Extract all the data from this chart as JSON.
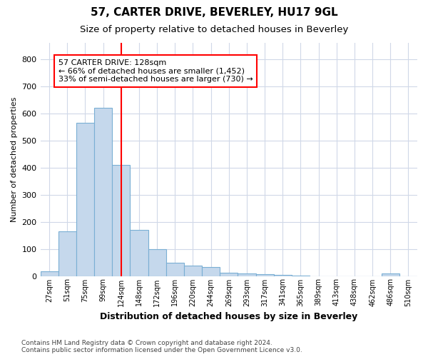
{
  "title1": "57, CARTER DRIVE, BEVERLEY, HU17 9GL",
  "title2": "Size of property relative to detached houses in Beverley",
  "xlabel": "Distribution of detached houses by size in Beverley",
  "ylabel": "Number of detached properties",
  "footnote": "Contains HM Land Registry data © Crown copyright and database right 2024.\nContains public sector information licensed under the Open Government Licence v3.0.",
  "bar_color": "#c5d8ec",
  "bar_edge_color": "#7aafd4",
  "categories": [
    "27sqm",
    "51sqm",
    "75sqm",
    "99sqm",
    "124sqm",
    "148sqm",
    "172sqm",
    "196sqm",
    "220sqm",
    "244sqm",
    "269sqm",
    "293sqm",
    "317sqm",
    "341sqm",
    "365sqm",
    "389sqm",
    "413sqm",
    "438sqm",
    "462sqm",
    "486sqm",
    "510sqm"
  ],
  "values": [
    17,
    165,
    565,
    620,
    410,
    170,
    100,
    50,
    38,
    32,
    12,
    10,
    7,
    5,
    2,
    0,
    0,
    0,
    0,
    8,
    0
  ],
  "ylim": [
    0,
    860
  ],
  "yticks": [
    0,
    100,
    200,
    300,
    400,
    500,
    600,
    700,
    800
  ],
  "annotation_text_line1": "57 CARTER DRIVE: 128sqm",
  "annotation_text_line2": "← 66% of detached houses are smaller (1,452)",
  "annotation_text_line3": "33% of semi-detached houses are larger (730) →",
  "annotation_box_color": "white",
  "annotation_box_edge_color": "red",
  "vline_color": "red",
  "vline_x": 4.0,
  "background_color": "white",
  "grid_color": "#d0d8e8",
  "title1_fontsize": 11,
  "title2_fontsize": 9.5,
  "xlabel_fontsize": 9,
  "ylabel_fontsize": 8,
  "footnote_fontsize": 6.5
}
